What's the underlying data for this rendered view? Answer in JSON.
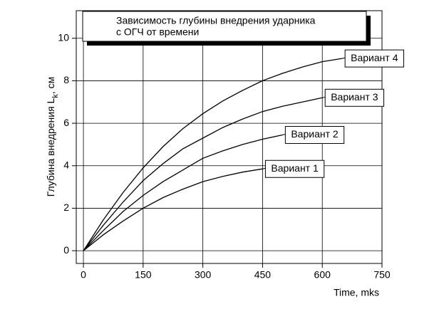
{
  "chart_data": {
    "type": "line",
    "title": [
      "Зависимость глубины внедрения ударника",
      "с ОГЧ от времени"
    ],
    "xlabel": "Time, mks",
    "ylabel": "Глубина внедрения L",
    "ylabel_subscript": "k",
    "ylabel_suffix": ", см",
    "xlim": [
      -18,
      750
    ],
    "xticks": [
      0,
      150,
      300,
      450,
      600,
      750
    ],
    "ylim": [
      -0.6,
      11.3
    ],
    "yticks": [
      0,
      2,
      4,
      6,
      8,
      10
    ],
    "grid": true,
    "series": [
      {
        "name": "Вариант 1",
        "color": "#000000",
        "x": [
          0,
          50,
          100,
          150,
          200,
          250,
          300,
          350,
          400,
          450
        ],
        "values": [
          0,
          0.75,
          1.4,
          2.0,
          2.5,
          2.9,
          3.25,
          3.5,
          3.7,
          3.85
        ]
      },
      {
        "name": "Вариант 2",
        "color": "#000000",
        "x": [
          0,
          50,
          100,
          150,
          200,
          250,
          300,
          350,
          400,
          450,
          500
        ],
        "values": [
          0,
          0.95,
          1.85,
          2.6,
          3.25,
          3.8,
          4.35,
          4.7,
          5.0,
          5.25,
          5.45
        ]
      },
      {
        "name": "Вариант 3",
        "color": "#000000",
        "x": [
          0,
          50,
          100,
          150,
          200,
          250,
          300,
          350,
          400,
          450,
          500,
          550,
          600
        ],
        "values": [
          0,
          1.2,
          2.3,
          3.3,
          4.1,
          4.8,
          5.3,
          5.8,
          6.2,
          6.55,
          6.8,
          7.0,
          7.2
        ]
      },
      {
        "name": "Вариант 4",
        "color": "#000000",
        "x": [
          0,
          50,
          100,
          150,
          200,
          250,
          300,
          350,
          400,
          450,
          500,
          550,
          600,
          650
        ],
        "values": [
          0,
          1.45,
          2.75,
          3.9,
          4.9,
          5.75,
          6.45,
          7.05,
          7.55,
          8.0,
          8.35,
          8.65,
          8.9,
          9.05
        ]
      }
    ]
  }
}
